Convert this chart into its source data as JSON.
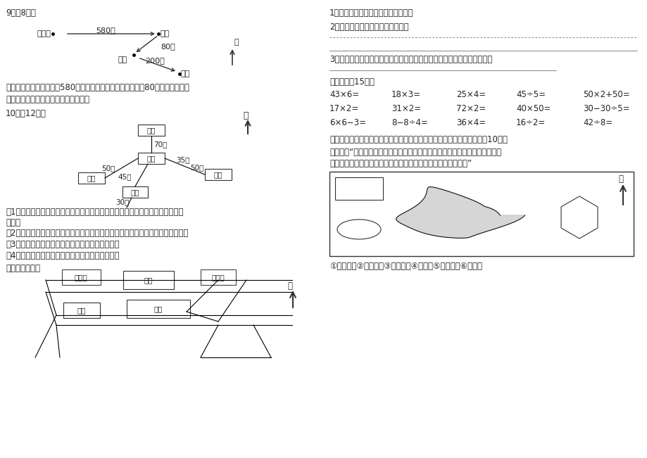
{
  "bg_color": "#ffffff",
  "q9_label": "9．（8分）",
  "q10_label": "10。（12分）",
  "q9_xiaoming": "小明家",
  "q9_shudian": "书店",
  "q9_shangdian": "商店",
  "q9_xuexiao": "学校",
  "q9_d1": "580米",
  "q9_d2": "80米",
  "q9_d3": "200米",
  "bei": "北",
  "q9_text1": "小明从家向（　　）面走580米来到书店，又向（　　）面走80米来到商店，再",
  "q9_text2": "向（　　）面走（　　）米来到学校。",
  "q10_xiaojun_top": "小军",
  "q10_xuexiao": "学校",
  "q10_xiaoliang": "小谅",
  "q10_xiaohong": "小红",
  "q10_xiaojun_right": "小军",
  "q10_d1": "70米",
  "q10_d2": "35米",
  "q10_d3": "50米",
  "q10_d4": "50米",
  "q10_d5": "45米",
  "q10_d6": "30米",
  "q10_t1": "（1）小红先往（　　）方向走（　　）米，再往（　　）方向走（　　）米来到",
  "q10_t1b": "学校。",
  "q10_t2": "（2）小军往（　　）方向走（　　）米再往（　　）方向走（　　）米来到学校。",
  "q10_t3": "（3）小谅往（　　）方向走（　　）米来到学校。",
  "q10_t4": "（4）小淫往（　　）方向走（　　）米来到学校。",
  "er_label": "二、看图填空。",
  "map_lihong": "李红家",
  "map_gongyuan": "公园",
  "map_dianying": "电　影",
  "map_shangye": "商业",
  "map_shudian": "书店",
  "right_q1": "1、书店在李红家的（　　　　）面。",
  "right_q2": "2、请你写出李红家去书店的路线。",
  "right_q3": "3、从图中你还知道什么？请写出来。（如：（　）在（　）的（　）面）",
  "san_label": "三、口算（15分）",
  "math_row1": [
    "43×6=",
    "18×3=",
    "25×4=",
    "45÷5=",
    "50×2+50="
  ],
  "math_row2": [
    "17×2=",
    "31×2=",
    "72×2=",
    "40×50=",
    "30−30÷5="
  ],
  "math_row3": [
    "6×6−3=",
    "8−8÷4=",
    "36×4=",
    "16÷2=",
    "42÷8="
  ],
  "si_label": "四、请你根据东东的描述把公园的各个项目的序号填在适当的位置上。（10分）",
  "si_text1": "东东说：“走进公园大门，正北面有小卖部和游乐场。小卖部的西却是过山车，",
  "si_text2": "东側是鳄鱼池，猛山在公园的西北角，公园的东北角是百鸟园。”",
  "si_legend": "①小卖部　②鳄鱼池　③过山车　④猛山　⑤百鸟园　⑥游乐场"
}
